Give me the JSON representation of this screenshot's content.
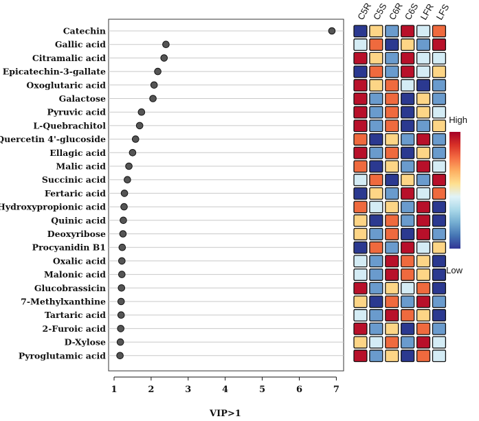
{
  "chart_data": {
    "type": "scatter",
    "subtype": "vip-dot-plot-with-heatmap",
    "xlabel": "VIP>1",
    "xlim": [
      0.9,
      7.2
    ],
    "xticks": [
      1,
      2,
      3,
      4,
      5,
      6,
      7
    ],
    "grid": "horizontal",
    "metabolites": [
      "Catechin",
      "Gallic acid",
      "Citramalic acid",
      "Epicatechin-3-gallate",
      "Oxoglutaric acid",
      "Galactose",
      "Pyruvic acid",
      "L-Quebrachitol",
      "Quercetin 4'-glucoside",
      "Ellagic acid",
      "Malic acid",
      "Succinic acid",
      "Fertaric acid",
      "Hydroxypropionic acid",
      "Quinic acid",
      "Deoxyribose",
      "Procyanidin B1",
      "Oxalic acid",
      "Malonic acid",
      "Glucobrassicin",
      "7-Methylxanthine",
      "Tartaric acid",
      "2-Furoic acid",
      "D-Xylose",
      "Pyroglutamic acid"
    ],
    "vip": [
      6.88,
      2.4,
      2.35,
      2.18,
      2.08,
      2.05,
      1.74,
      1.69,
      1.58,
      1.5,
      1.4,
      1.36,
      1.28,
      1.27,
      1.25,
      1.24,
      1.22,
      1.21,
      1.21,
      1.2,
      1.19,
      1.19,
      1.18,
      1.17,
      1.16
    ],
    "heatmap": {
      "columns": [
        "C5R",
        "C5S",
        "C6R",
        "C6S",
        "LFR",
        "LFS"
      ],
      "level_scale": "1=low (dark blue) ... 6=high (dark red)",
      "values": [
        [
          1,
          4,
          2,
          6,
          3,
          5
        ],
        [
          3,
          5,
          1,
          4,
          2,
          6
        ],
        [
          6,
          4,
          2,
          6,
          3,
          3
        ],
        [
          1,
          5,
          2,
          6,
          3,
          4
        ],
        [
          6,
          4,
          5,
          3,
          1,
          2
        ],
        [
          6,
          2,
          5,
          1,
          4,
          2
        ],
        [
          6,
          2,
          5,
          1,
          4,
          3
        ],
        [
          6,
          2,
          5,
          1,
          2,
          4
        ],
        [
          5,
          1,
          4,
          2,
          6,
          2
        ],
        [
          6,
          2,
          5,
          1,
          4,
          2
        ],
        [
          5,
          1,
          4,
          2,
          6,
          3
        ],
        [
          3,
          5,
          1,
          4,
          2,
          6
        ],
        [
          1,
          4,
          2,
          6,
          3,
          5
        ],
        [
          5,
          3,
          4,
          2,
          6,
          1
        ],
        [
          4,
          1,
          5,
          2,
          6,
          1
        ],
        [
          4,
          2,
          5,
          1,
          6,
          2
        ],
        [
          1,
          5,
          2,
          6,
          3,
          4
        ],
        [
          3,
          2,
          6,
          5,
          4,
          1
        ],
        [
          3,
          2,
          6,
          5,
          4,
          1
        ],
        [
          6,
          2,
          4,
          3,
          5,
          1
        ],
        [
          4,
          1,
          5,
          2,
          6,
          2
        ],
        [
          3,
          2,
          6,
          5,
          4,
          1
        ],
        [
          6,
          2,
          4,
          1,
          5,
          2
        ],
        [
          4,
          3,
          5,
          2,
          6,
          3
        ],
        [
          6,
          2,
          4,
          1,
          5,
          3
        ]
      ]
    },
    "legend": {
      "high_label": "High",
      "low_label": "Low",
      "colors": [
        "#a50026",
        "#d73027",
        "#f46d43",
        "#fdae61",
        "#fee090",
        "#e0f3f8",
        "#abd9e9",
        "#74add1",
        "#4575b4",
        "#313695"
      ]
    }
  },
  "level_colors": {
    "1": "#2b3990",
    "2": "#6a9bcd",
    "3": "#d4ecf5",
    "4": "#fdd586",
    "5": "#ef6a3e",
    "6": "#b8102a"
  }
}
